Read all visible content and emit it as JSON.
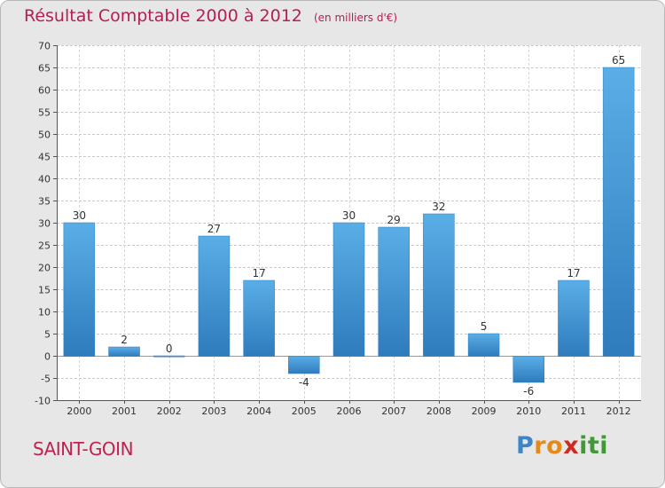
{
  "chart_data": {
    "type": "bar",
    "title": "Résultat Comptable 2000 à 2012",
    "subtitle": "(en milliers d'€)",
    "categories": [
      "2000",
      "2001",
      "2002",
      "2003",
      "2004",
      "2005",
      "2006",
      "2007",
      "2008",
      "2009",
      "2010",
      "2011",
      "2012"
    ],
    "values": [
      30,
      2,
      0,
      27,
      17,
      -4,
      30,
      29,
      32,
      5,
      -6,
      17,
      65
    ],
    "data_labels": [
      "30",
      "2",
      "0",
      "27",
      "17",
      "-4",
      "30",
      "29",
      "32",
      "5",
      "-6",
      "17",
      "65"
    ],
    "ylim": [
      -10,
      70
    ],
    "yticks": [
      -10,
      -5,
      0,
      5,
      10,
      15,
      20,
      25,
      30,
      35,
      40,
      45,
      50,
      55,
      60,
      65,
      70
    ],
    "xlabel": "",
    "ylabel": "",
    "grid": true,
    "bar_color": "#3d8fd0",
    "bar_color_light": "#5aaee6",
    "bar_color_dark": "#2f7bbd"
  },
  "footer": {
    "place_name": "SAINT-GOIN",
    "logo_letters": [
      "P",
      "r",
      "o",
      "x",
      "i",
      "t",
      "i"
    ],
    "logo_colors": [
      "#3b85c9",
      "#e48a1c",
      "#e48a1c",
      "#cf2a20",
      "#3f9a35",
      "#3f9a35",
      "#3f9a35"
    ]
  }
}
